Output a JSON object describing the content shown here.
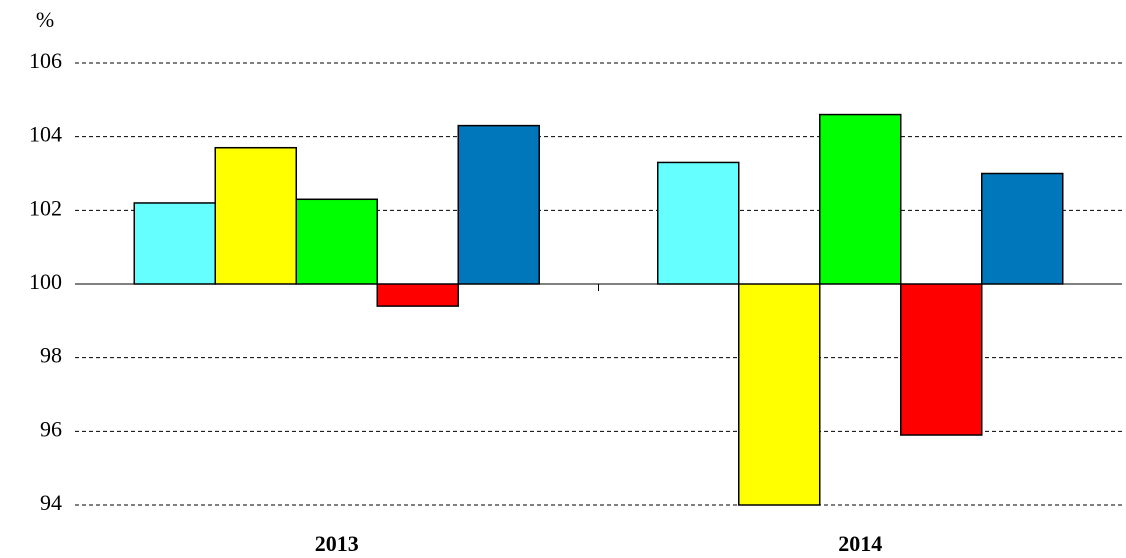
{
  "chart_data": {
    "type": "bar",
    "y_label": "%",
    "categories": [
      "2013",
      "2014"
    ],
    "series": [
      {
        "color": "#66ffff",
        "values": [
          102.2,
          103.3
        ]
      },
      {
        "color": "#ffff00",
        "values": [
          103.7,
          94.0
        ]
      },
      {
        "color": "#00ff00",
        "values": [
          102.3,
          104.6
        ]
      },
      {
        "color": "#ff0000",
        "values": [
          99.4,
          95.9
        ]
      },
      {
        "color": "#0077bb",
        "values": [
          104.3,
          103.0
        ]
      }
    ],
    "baseline": 100,
    "ylim": [
      94,
      106
    ],
    "yticks": [
      94,
      96,
      98,
      100,
      102,
      104,
      106
    ],
    "grid": true
  }
}
